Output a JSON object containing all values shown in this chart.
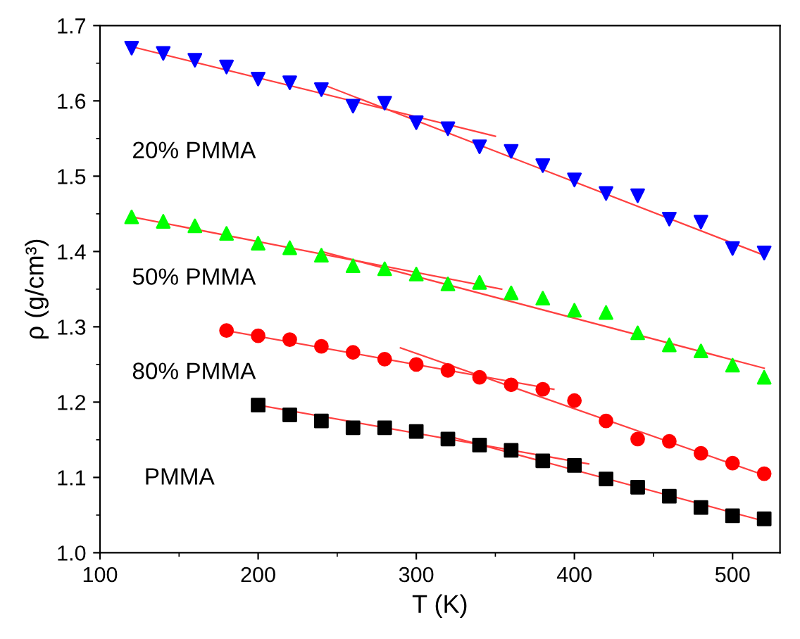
{
  "chart_data": {
    "type": "scatter",
    "xlabel": "T (K)",
    "ylabel": "ρ (g/cm³)",
    "xlim": [
      100,
      530
    ],
    "ylim": [
      1.0,
      1.7
    ],
    "xticks": [
      100,
      200,
      300,
      400,
      500
    ],
    "yticks": [
      {
        "value": 1.0,
        "label": "1.0"
      },
      {
        "value": 1.1,
        "label": "1.1"
      },
      {
        "value": 1.2,
        "label": "1.2"
      },
      {
        "value": 1.3,
        "label": "1.3"
      },
      {
        "value": 1.4,
        "label": "1.4"
      },
      {
        "value": 1.5,
        "label": "1.5"
      },
      {
        "value": 1.6,
        "label": "1.6"
      },
      {
        "value": 1.7,
        "label": "1.7"
      }
    ],
    "grid": false,
    "legend": false,
    "series": [
      {
        "color": "#0000ff",
        "marker": "triangle_down",
        "x": [
          120,
          140,
          160,
          180,
          200,
          220,
          240,
          260,
          280,
          300,
          320,
          340,
          360,
          380,
          400,
          420,
          440,
          460,
          480,
          500,
          520
        ],
        "values": [
          1.67,
          1.663,
          1.654,
          1.645,
          1.629,
          1.624,
          1.615,
          1.593,
          1.597,
          1.571,
          1.563,
          1.539,
          1.533,
          1.514,
          1.495,
          1.477,
          1.474,
          1.443,
          1.439,
          1.404,
          1.398
        ]
      },
      {
        "color": "#00ff00",
        "marker": "triangle",
        "x": [
          120,
          140,
          160,
          180,
          200,
          220,
          240,
          260,
          280,
          300,
          320,
          340,
          360,
          380,
          400,
          420,
          440,
          460,
          480,
          500,
          520
        ],
        "values": [
          1.446,
          1.44,
          1.434,
          1.424,
          1.411,
          1.405,
          1.395,
          1.381,
          1.377,
          1.37,
          1.357,
          1.359,
          1.345,
          1.338,
          1.322,
          1.319,
          1.292,
          1.276,
          1.268,
          1.249,
          1.233
        ]
      },
      {
        "color": "#ff0000",
        "marker": "circle",
        "x": [
          180,
          200,
          220,
          240,
          260,
          280,
          300,
          320,
          340,
          360,
          380,
          400,
          420,
          440,
          460,
          480,
          500,
          520
        ],
        "values": [
          1.295,
          1.288,
          1.283,
          1.274,
          1.266,
          1.257,
          1.25,
          1.242,
          1.233,
          1.223,
          1.217,
          1.202,
          1.175,
          1.151,
          1.148,
          1.132,
          1.119,
          1.105
        ]
      },
      {
        "color": "#000000",
        "marker": "square",
        "x": [
          200,
          220,
          240,
          260,
          280,
          300,
          320,
          340,
          360,
          380,
          400,
          420,
          440,
          460,
          480,
          500,
          520
        ],
        "values": [
          1.196,
          1.183,
          1.175,
          1.166,
          1.166,
          1.161,
          1.151,
          1.143,
          1.136,
          1.122,
          1.116,
          1.098,
          1.087,
          1.075,
          1.06,
          1.049,
          1.045
        ]
      },
      {
        "type": "line",
        "color": "#ff4040",
        "x": [
          120,
          350
        ],
        "values": [
          1.672,
          1.553
        ]
      },
      {
        "type": "line",
        "color": "#ff4040",
        "x": [
          243,
          520
        ],
        "values": [
          1.62,
          1.395
        ]
      },
      {
        "type": "line",
        "color": "#ff4040",
        "x": [
          120,
          354
        ],
        "values": [
          1.446,
          1.35
        ]
      },
      {
        "type": "line",
        "color": "#ff4040",
        "x": [
          240,
          520
        ],
        "values": [
          1.4,
          1.245
        ]
      },
      {
        "type": "line",
        "color": "#ff4040",
        "x": [
          180,
          387
        ],
        "values": [
          1.295,
          1.217
        ]
      },
      {
        "type": "line",
        "color": "#ff4040",
        "x": [
          290,
          520
        ],
        "values": [
          1.272,
          1.103
        ]
      },
      {
        "type": "line",
        "color": "#ff4040",
        "x": [
          200,
          409
        ],
        "values": [
          1.196,
          1.118
        ]
      },
      {
        "type": "line",
        "color": "#ff4040",
        "x": [
          320,
          520
        ],
        "values": [
          1.155,
          1.042
        ]
      }
    ],
    "annotations": [
      "20% PMMA",
      "50% PMMA",
      "80% PMMA",
      "PMMA"
    ]
  }
}
